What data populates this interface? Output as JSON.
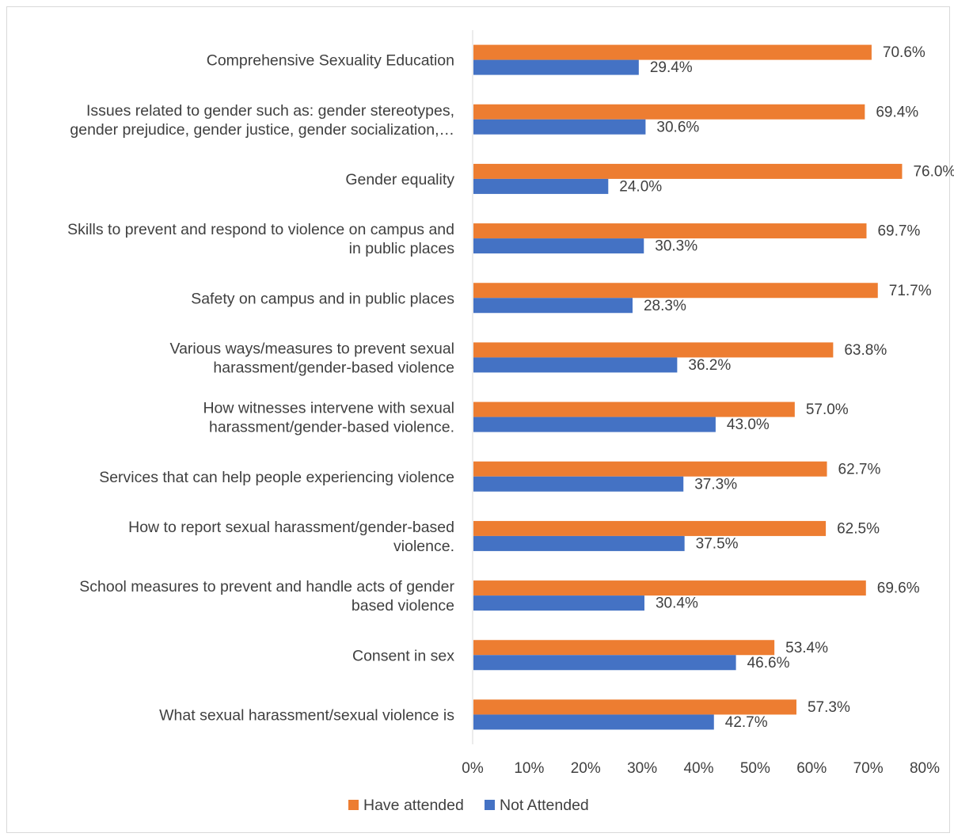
{
  "chart_data": {
    "type": "bar",
    "orientation": "horizontal",
    "title": "",
    "xlabel": "",
    "ylabel": "",
    "xlim": [
      0,
      80
    ],
    "ticks": [
      "0%",
      "10%",
      "20%",
      "30%",
      "40%",
      "50%",
      "60%",
      "70%",
      "80%"
    ],
    "tick_values": [
      0,
      10,
      20,
      30,
      40,
      50,
      60,
      70,
      80
    ],
    "grid": false,
    "legend_position": "bottom",
    "categories": [
      [
        "Comprehensive Sexuality Education"
      ],
      [
        "Issues related to gender such as: gender stereotypes,",
        "gender prejudice, gender justice, gender socialization,…"
      ],
      [
        "Gender equality"
      ],
      [
        "Skills to prevent and respond to violence on campus and",
        "in public places"
      ],
      [
        "Safety on campus and in public places"
      ],
      [
        "Various ways/measures to prevent sexual",
        "harassment/gender-based violence"
      ],
      [
        "How witnesses intervene with sexual",
        "harassment/gender-based violence."
      ],
      [
        "Services that can help people experiencing violence"
      ],
      [
        "How to report sexual harassment/gender-based",
        "violence."
      ],
      [
        "School measures to prevent and handle acts of gender",
        "based violence"
      ],
      [
        "Consent in sex"
      ],
      [
        "What sexual harassment/sexual violence is"
      ]
    ],
    "series": [
      {
        "name": "Have attended",
        "color": "#ED7D31",
        "values": [
          70.6,
          69.4,
          76.0,
          69.7,
          71.7,
          63.8,
          57.0,
          62.7,
          62.5,
          69.6,
          53.4,
          57.3
        ],
        "labels": [
          "70.6%",
          "69.4%",
          "76.0%",
          "69.7%",
          "71.7%",
          "63.8%",
          "57.0%",
          "62.7%",
          "62.5%",
          "69.6%",
          "53.4%",
          "57.3%"
        ]
      },
      {
        "name": "Not Attended",
        "color": "#4472C4",
        "values": [
          29.4,
          30.6,
          24.0,
          30.3,
          28.3,
          36.2,
          43.0,
          37.3,
          37.5,
          30.4,
          46.6,
          42.7
        ],
        "labels": [
          "29.4%",
          "30.6%",
          "24.0%",
          "30.3%",
          "28.3%",
          "36.2%",
          "43.0%",
          "37.3%",
          "37.5%",
          "30.4%",
          "46.6%",
          "42.7%"
        ]
      }
    ]
  }
}
